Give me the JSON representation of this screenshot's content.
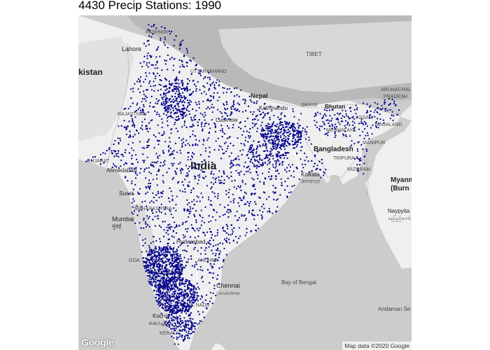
{
  "title": "4430 Precip Stations: 1990",
  "map": {
    "attribution": "Map data ©2020 Google",
    "logo_text": "Google",
    "station_color": "#00008b",
    "station_count": 4430,
    "labels": {
      "kashmir": "KASHMIR",
      "lahore": "Lahore",
      "pakistan": "kistan",
      "tibet": "TIBET",
      "uttarakhand": "UTTARAKHAND",
      "nepal": "Nepal",
      "kathmandu": "Kathmandu",
      "sikkim": "SIKKIM",
      "bhutan": "Bhutan",
      "arunachal": "ARUNACHAL",
      "pradesh": "PRADESH",
      "rajasthan": "RAJASTHAN",
      "lucknow": "Lucknow",
      "assam": "ASSAM",
      "meghalaya": "MEGHALAYA",
      "nagaland": "NAGALAND",
      "bangladesh": "Bangladesh",
      "manipur": "MANIPUR",
      "gujarat": "GUJARAT",
      "india": "India",
      "kolkata": "Kolkata",
      "kolkata_bn": "কলকাতা",
      "tripura": "TRIPURA",
      "mizoram": "MIZORAM",
      "ahmedabad": "Ahmedabad",
      "surat": "Surat",
      "myanmar": "Myanm",
      "burma": "(Burn",
      "maharashtra": "MAHARASHTRA",
      "naypyitaw": "Naypyita",
      "naypyitaw_my": "နေပြည်တော်",
      "mumbai": "Mumbai",
      "mumbai_mr": "मुंबई",
      "hyderabad": "Hyderabad",
      "goa": "GOA",
      "karnataka": "KARNATAKA",
      "andhra": "ANDHRA",
      "chennai": "Chennai",
      "chennai_ta": "சென்னை",
      "bay_of_bengal": "Bay of Bengal",
      "tamil_nadu": "TAMIL NADU",
      "kochi": "Kochi",
      "kochi_ml": "കൊച്ചി",
      "kerala": "KERALA",
      "andaman_sea": "Andaman Se"
    }
  }
}
